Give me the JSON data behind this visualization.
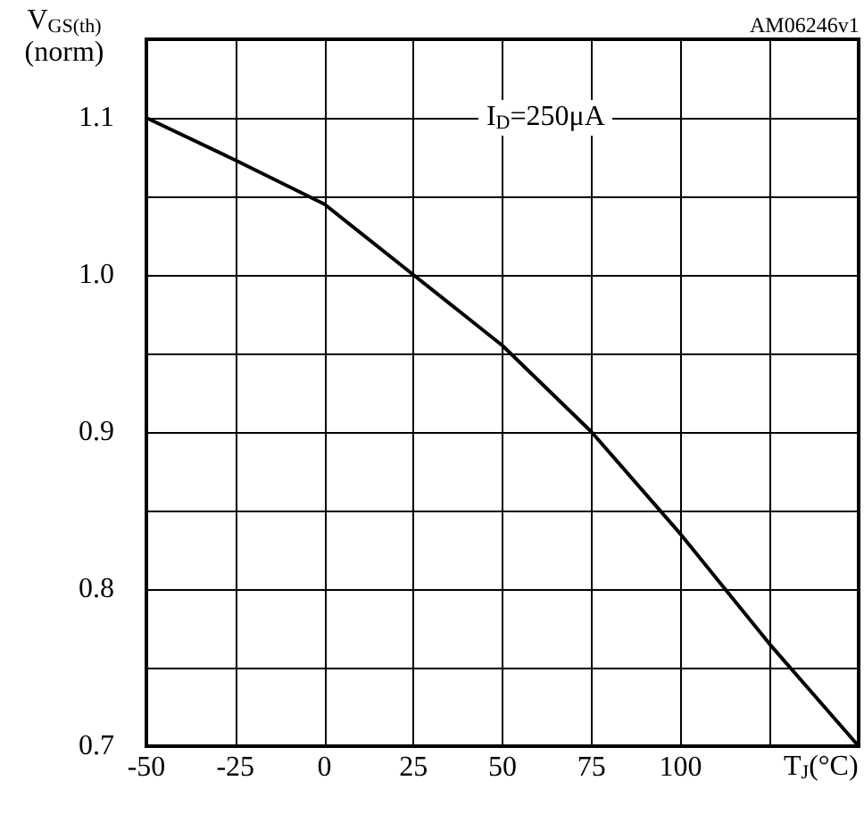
{
  "chart_data": {
    "type": "line",
    "xlabel": "T$_{J}$(°C)",
    "ylabel": "V$_{GS(th)}$ (norm)",
    "annotations": [
      "I$_{D}$=250μA",
      "AM06246v1"
    ],
    "x": [
      -50,
      -25,
      0,
      25,
      50,
      75,
      100,
      125,
      150
    ],
    "series": [
      {
        "color": "#000000",
        "values": [
          1.1,
          1.073,
          1.045,
          1.0,
          0.955,
          0.9,
          0.835,
          0.765,
          0.7
        ]
      }
    ],
    "xlim": [
      -50,
      150
    ],
    "xticks": [
      -50,
      -25,
      0,
      25,
      50,
      75,
      100,
      {
        "value": 125,
        "label": null
      },
      {
        "value": 150,
        "label": null
      }
    ],
    "ylim": [
      0.7,
      1.15
    ],
    "yticks": [
      {
        "value": 0.7,
        "label": "0.7"
      },
      {
        "value": 0.75,
        "label": null
      },
      {
        "value": 0.8,
        "label": "0.8"
      },
      {
        "value": 0.85,
        "label": null
      },
      {
        "value": 0.9,
        "label": "0.9"
      },
      {
        "value": 0.95,
        "label": null
      },
      {
        "value": 1.0,
        "label": "1.0"
      },
      {
        "value": 1.05,
        "label": null
      },
      {
        "value": 1.1,
        "label": "1.1"
      },
      {
        "value": 1.15,
        "label": null
      }
    ],
    "grid": true,
    "marker": "none",
    "line_style": "solid"
  }
}
